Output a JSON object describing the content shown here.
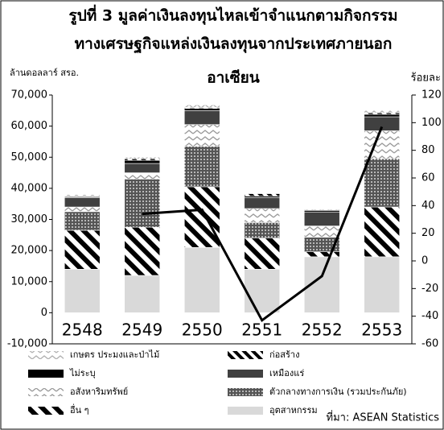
{
  "chart_data": {
    "type": "stacked_bar_line",
    "title": [
      "รูปที่  3 มูลค่าเงินลงทุนไหลเข้าจำแนกตามกิจกรรม",
      "ทางเศรษฐกิจแหล่งเงินลงทุนจากประเทศภายนอก",
      "อาเซียน"
    ],
    "y_label": "ล้านดอลลาร์ สรอ.",
    "y2_label": "ร้อยละ",
    "source": "ที่มา: ASEAN Statistics",
    "categories": [
      "2548",
      "2549",
      "2550",
      "2551",
      "2552",
      "2553"
    ],
    "series": [
      {
        "name": "อุตสาหกรรม",
        "color": "#d9d9d9",
        "pattern": "solid",
        "values": [
          14000,
          12000,
          21000,
          14000,
          18000,
          18000
        ]
      },
      {
        "name": "อื่น ๆ",
        "color": "#000000",
        "pattern": "stripes",
        "values": [
          12500,
          15500,
          19500,
          10000,
          1600,
          16000
        ]
      },
      {
        "name": "ตัวกลางทางการเงิน (รวมประกันภัย)",
        "color": "#555555",
        "pattern": "dots",
        "values": [
          6000,
          15500,
          13000,
          5000,
          4700,
          15500
        ]
      },
      {
        "name": "อสังหาริมทรัพย์",
        "color": "#9a9a9a",
        "pattern": "zigzag",
        "values": [
          1500,
          2000,
          7000,
          4500,
          3600,
          9000
        ]
      },
      {
        "name": "เหมืองแร่",
        "color": "#404040",
        "pattern": "solid",
        "values": [
          3000,
          3000,
          4500,
          3500,
          4500,
          4500
        ]
      },
      {
        "name": "ไม่ระบุ",
        "color": "#000000",
        "pattern": "solid",
        "values": [
          300,
          1000,
          700,
          500,
          500,
          800
        ]
      },
      {
        "name": "ก่อสร้าง",
        "color": "#000000",
        "pattern": "dashes",
        "values": [
          200,
          500,
          300,
          800,
          0,
          500
        ]
      },
      {
        "name": "เกษตร ประมงและป่าไม้",
        "color": "#b0b0b0",
        "pattern": "zigzag",
        "values": [
          500,
          500,
          800,
          400,
          300,
          800
        ]
      }
    ],
    "line": {
      "color": "#000000",
      "axis": "y2",
      "values": [
        null,
        34,
        37,
        -43,
        -11,
        97
      ]
    },
    "ylim": [
      -10000,
      70000
    ],
    "yticks": [
      {
        "value": -10000,
        "label": "-10,000"
      },
      0,
      {
        "value": 10000,
        "label": "10,000"
      },
      {
        "value": 20000,
        "label": "20,000"
      },
      {
        "value": 30000,
        "label": "30,000"
      },
      {
        "value": 40000,
        "label": "40,000"
      },
      {
        "value": 50000,
        "label": "50,000"
      },
      {
        "value": 60000,
        "label": "60,000"
      },
      {
        "value": 70000,
        "label": "70,000"
      }
    ],
    "y2lim": [
      -60,
      120
    ],
    "y2ticks": [
      -60,
      -40,
      -20,
      0,
      20,
      40,
      60,
      80,
      100,
      120
    ]
  }
}
